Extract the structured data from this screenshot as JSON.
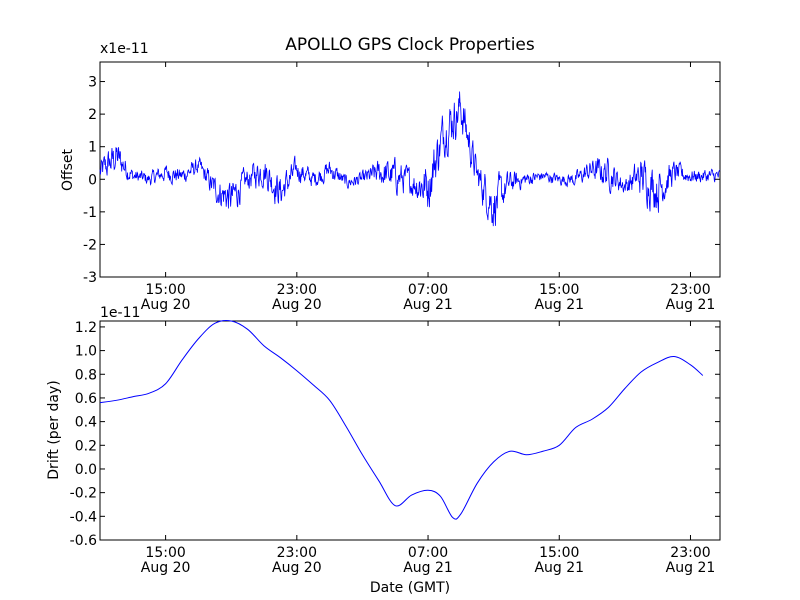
{
  "chart_data": [
    {
      "type": "line",
      "title": "APOLLO GPS Clock Properties",
      "ylabel": "Offset",
      "xlabel": "",
      "y_multiplier": "x1e-11",
      "ylim": [
        -3,
        3.6
      ],
      "xlim_hours_from_aug20_1100": [
        0,
        37.8
      ],
      "yticks": [
        -3,
        -2,
        -1,
        0,
        1,
        2,
        3
      ],
      "ytick_labels": [
        "-3",
        "-2",
        "-1",
        "0",
        "1",
        "2",
        "3"
      ],
      "xtick_labels": [
        {
          "time": "15:00",
          "date": "Aug 20"
        },
        {
          "time": "23:00",
          "date": "Aug 20"
        },
        {
          "time": "07:00",
          "date": "Aug 21"
        },
        {
          "time": "15:00",
          "date": "Aug 21"
        },
        {
          "time": "23:00",
          "date": "Aug 21"
        }
      ],
      "series": [
        {
          "color": "#0000ff",
          "x": [
            "Aug 20 11:00",
            "Aug 20 12:00",
            "Aug 20 13:00",
            "Aug 20 14:00",
            "Aug 20 15:00",
            "Aug 20 16:00",
            "Aug 20 17:00",
            "Aug 20 18:00",
            "Aug 20 19:00",
            "Aug 20 20:00",
            "Aug 20 21:00",
            "Aug 20 22:00",
            "Aug 20 23:00",
            "Aug 21 00:00",
            "Aug 21 01:00",
            "Aug 21 02:00",
            "Aug 21 03:00",
            "Aug 21 04:00",
            "Aug 21 05:00",
            "Aug 21 06:00",
            "Aug 21 07:00",
            "Aug 21 08:00",
            "Aug 21 09:00",
            "Aug 21 10:00",
            "Aug 21 11:00",
            "Aug 21 12:00",
            "Aug 21 13:00",
            "Aug 21 14:00",
            "Aug 21 15:00",
            "Aug 21 16:00",
            "Aug 21 17:00",
            "Aug 21 18:00",
            "Aug 21 19:00",
            "Aug 21 20:00",
            "Aug 21 21:00",
            "Aug 21 22:00",
            "Aug 21 23:00",
            "Aug 21 23:45"
          ],
          "values": [
            0.2,
            0.7,
            0.1,
            0.0,
            0.2,
            0.1,
            0.4,
            -0.3,
            -0.6,
            0.0,
            0.3,
            -0.4,
            0.3,
            0.0,
            0.3,
            -0.1,
            0.0,
            0.2,
            0.1,
            -0.1,
            -0.2,
            1.5,
            2.2,
            0.1,
            -0.8,
            -0.1,
            0.0,
            0.1,
            0.0,
            0.0,
            0.3,
            0.2,
            -0.2,
            0.1,
            -0.3,
            0.2,
            0.1,
            0.1
          ],
          "spread": [
            0.9,
            1.2,
            0.5,
            0.5,
            0.6,
            0.6,
            0.6,
            0.9,
            1.3,
            0.8,
            1.1,
            1.2,
            0.8,
            0.6,
            0.7,
            0.5,
            0.5,
            0.9,
            1.2,
            0.9,
            1.8,
            1.6,
            1.6,
            1.1,
            1.7,
            0.8,
            0.5,
            0.4,
            0.4,
            0.5,
            0.8,
            1.1,
            0.6,
            1.4,
            1.6,
            0.8,
            0.5,
            0.5
          ]
        }
      ]
    },
    {
      "type": "line",
      "title": "",
      "ylabel": "Drift (per day)",
      "xlabel": "Date (GMT)",
      "y_multiplier": "1e-11",
      "ylim": [
        -0.6,
        1.25
      ],
      "xlim_hours_from_aug20_1100": [
        0,
        37.8
      ],
      "yticks": [
        -0.6,
        -0.4,
        -0.2,
        0.0,
        0.2,
        0.4,
        0.6,
        0.8,
        1.0,
        1.2
      ],
      "ytick_labels": [
        "-0.6",
        "-0.4",
        "-0.2",
        "0.0",
        "0.2",
        "0.4",
        "0.6",
        "0.8",
        "1.0",
        "1.2"
      ],
      "xtick_labels": [
        {
          "time": "15:00",
          "date": "Aug 20"
        },
        {
          "time": "23:00",
          "date": "Aug 20"
        },
        {
          "time": "07:00",
          "date": "Aug 21"
        },
        {
          "time": "15:00",
          "date": "Aug 21"
        },
        {
          "time": "23:00",
          "date": "Aug 21"
        }
      ],
      "series": [
        {
          "color": "#0000ff",
          "x": [
            "Aug 20 11:00",
            "Aug 20 12:00",
            "Aug 20 13:00",
            "Aug 20 14:00",
            "Aug 20 15:00",
            "Aug 20 16:00",
            "Aug 20 17:00",
            "Aug 20 18:00",
            "Aug 20 19:00",
            "Aug 20 20:00",
            "Aug 20 21:00",
            "Aug 20 22:00",
            "Aug 20 23:00",
            "Aug 21 00:00",
            "Aug 21 01:00",
            "Aug 21 02:00",
            "Aug 21 03:00",
            "Aug 21 04:00",
            "Aug 21 05:00",
            "Aug 21 06:00",
            "Aug 21 07:00",
            "Aug 21 07:45",
            "Aug 21 08:30",
            "Aug 21 09:00",
            "Aug 21 10:00",
            "Aug 21 11:00",
            "Aug 21 12:00",
            "Aug 21 13:00",
            "Aug 21 14:00",
            "Aug 21 15:00",
            "Aug 21 16:00",
            "Aug 21 17:00",
            "Aug 21 18:00",
            "Aug 21 19:00",
            "Aug 21 20:00",
            "Aug 21 21:00",
            "Aug 21 22:00",
            "Aug 21 23:00",
            "Aug 21 23:45"
          ],
          "values": [
            0.56,
            0.58,
            0.61,
            0.64,
            0.72,
            0.92,
            1.1,
            1.23,
            1.25,
            1.18,
            1.04,
            0.94,
            0.83,
            0.71,
            0.58,
            0.36,
            0.12,
            -0.1,
            -0.31,
            -0.22,
            -0.18,
            -0.23,
            -0.41,
            -0.38,
            -0.12,
            0.06,
            0.15,
            0.12,
            0.15,
            0.2,
            0.35,
            0.42,
            0.52,
            0.68,
            0.82,
            0.9,
            0.95,
            0.88,
            0.79
          ]
        }
      ]
    }
  ]
}
